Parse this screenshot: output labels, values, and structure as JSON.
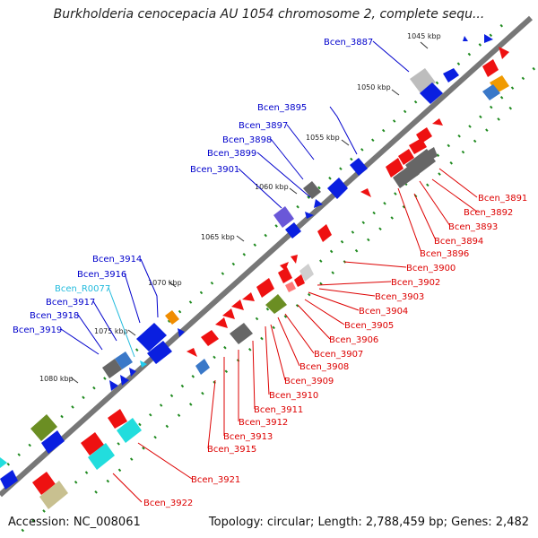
{
  "title": "Burkholderia cenocepacia AU 1054 chromosome 2, complete sequ...",
  "footer": {
    "accession": "Accession: NC_008061",
    "summary": "Topology: circular; Length: 2,788,459 bp; Genes: 2,482"
  },
  "colors": {
    "backbone": "#777777",
    "dots": "#1f8a1f",
    "forward_label": "#0000cc",
    "reverse_label": "#dd0000",
    "rna_label": "#22bbdd"
  },
  "ticks": [
    "1045 kbp",
    "1050 kbp",
    "1055 kbp",
    "1060 kbp",
    "1065 kbp",
    "1070 kbp",
    "1075 kbp",
    "1080 kbp"
  ],
  "labels_left": [
    "Bcen_3887",
    "Bcen_3895",
    "Bcen_3897",
    "Bcen_3898",
    "Bcen_3899",
    "Bcen_3901",
    "Bcen_3914",
    "Bcen_3916",
    "Bcen_R0077",
    "Bcen_3917",
    "Bcen_3918",
    "Bcen_3919"
  ],
  "labels_right": [
    "Bcen_3891",
    "Bcen_3892",
    "Bcen_3893",
    "Bcen_3894",
    "Bcen_3896",
    "Bcen_3900",
    "Bcen_3902",
    "Bcen_3903",
    "Bcen_3904",
    "Bcen_3905",
    "Bcen_3906",
    "Bcen_3907",
    "Bcen_3908",
    "Bcen_3909",
    "Bcen_3910",
    "Bcen_3911",
    "Bcen_3912",
    "Bcen_3913",
    "Bcen_3915",
    "Bcen_3921",
    "Bcen_3922"
  ]
}
